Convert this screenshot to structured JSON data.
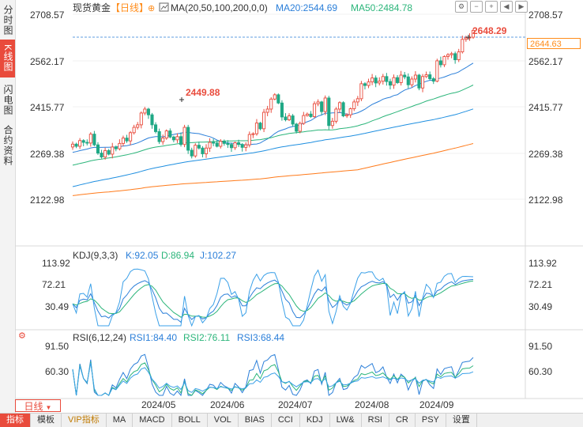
{
  "side_tabs": [
    {
      "label": "分时图",
      "active": false
    },
    {
      "label": "K线图",
      "active": true
    },
    {
      "label": "闪电图",
      "active": false
    },
    {
      "label": "合约资料",
      "active": false
    }
  ],
  "header": {
    "instrument": "现货黄金",
    "period_tag": "【日线】",
    "ma_label": "MA(20,50,100,200,0,0)",
    "ma20_label": "MA20:2544.69",
    "ma50_label": "MA50:2484.78"
  },
  "right_axis_ticks": [
    "2708.57",
    "2562.17",
    "2415.77",
    "2269.38",
    "2122.98"
  ],
  "current_price": "2644.63",
  "annotations": {
    "high_recent": "2648.29",
    "high_prior": "2449.88"
  },
  "kdj": {
    "label": "KDJ(9,3,3)",
    "k_label": "K:92.05",
    "d_label": "D:86.94",
    "j_label": "J:102.27",
    "ticks": [
      "113.92",
      "72.21",
      "30.49"
    ]
  },
  "rsi": {
    "label": "RSI(6,12,24)",
    "rsi1_label": "RSI1:84.40",
    "rsi2_label": "RSI2:76.11",
    "rsi3_label": "RSI3:68.44",
    "ticks": [
      "91.50",
      "60.30"
    ]
  },
  "x_ticks": [
    "2024/05",
    "2024/06",
    "2024/07",
    "2024/08",
    "2024/09"
  ],
  "period_button": "日线",
  "bottom_tabs": [
    "指标",
    "模板",
    "VIP指标",
    "MA",
    "MACD",
    "BOLL",
    "VOL",
    "BIAS",
    "CCI",
    "KDJ",
    "LW&",
    "RSI",
    "CR",
    "PSY",
    "设置"
  ],
  "colors": {
    "up": "#e94b3c",
    "down": "#1ea885",
    "ma20": "#2b7fd9",
    "ma50": "#2bb57a",
    "ma100": "#1f8fe0",
    "ma200": "#ff7a1a"
  },
  "chart_data": [
    {
      "type": "candlestick",
      "title": "现货黄金【日线】",
      "ylim": [
        2050,
        2720
      ],
      "x_start": "2024/04/22",
      "highs_annotated": [
        2449.88,
        2648.29
      ],
      "close": [
        2328,
        2322,
        2338,
        2333,
        2331,
        2356,
        2326,
        2303,
        2292,
        2310,
        2300,
        2320,
        2315,
        2330,
        2345,
        2337,
        2360,
        2375,
        2382,
        2415,
        2426,
        2410,
        2382,
        2363,
        2335,
        2345,
        2365,
        2348,
        2340,
        2349,
        2327,
        2375,
        2311,
        2295,
        2325,
        2317,
        2301,
        2317,
        2333,
        2331,
        2322,
        2336,
        2330,
        2327,
        2318,
        2332,
        2327,
        2319,
        2326,
        2355,
        2357,
        2387,
        2371,
        2417,
        2426,
        2454,
        2466,
        2443,
        2404,
        2396,
        2407,
        2384,
        2364,
        2386,
        2408,
        2412,
        2405,
        2441,
        2446,
        2419,
        2457,
        2380,
        2392,
        2426,
        2444,
        2407,
        2410,
        2427,
        2446,
        2455,
        2497,
        2492,
        2502,
        2513,
        2499,
        2504,
        2517,
        2503,
        2493,
        2514,
        2500,
        2521,
        2516,
        2494,
        2510,
        2521,
        2485,
        2517,
        2522,
        2511,
        2504,
        2561,
        2550,
        2573,
        2578,
        2581,
        2564,
        2586,
        2621,
        2625,
        2627,
        2646
      ],
      "ma_series": [
        {
          "name": "MA20",
          "last": 2544.69
        },
        {
          "name": "MA50",
          "last": 2484.78
        },
        {
          "name": "MA100"
        },
        {
          "name": "MA200"
        }
      ]
    },
    {
      "type": "line",
      "title": "KDJ(9,3,3)",
      "series": [
        {
          "name": "K",
          "last": 92.05
        },
        {
          "name": "D",
          "last": 86.94
        },
        {
          "name": "J",
          "last": 102.27
        }
      ],
      "ylim": [
        10,
        125
      ]
    },
    {
      "type": "line",
      "title": "RSI(6,12,24)",
      "series": [
        {
          "name": "RSI1",
          "last": 84.4
        },
        {
          "name": "RSI2",
          "last": 76.11
        },
        {
          "name": "RSI3",
          "last": 68.44
        }
      ],
      "ylim": [
        40,
        98
      ]
    }
  ]
}
